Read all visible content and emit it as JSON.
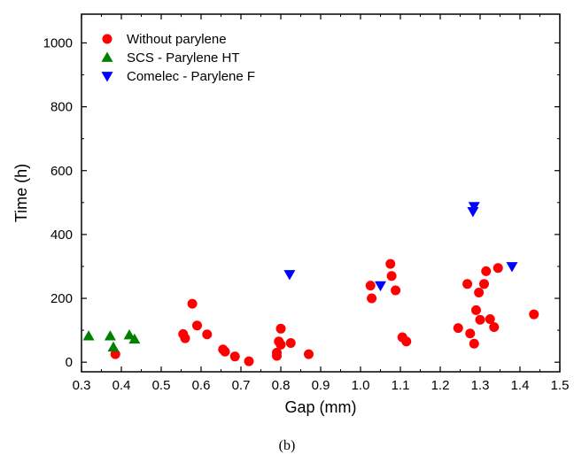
{
  "chart_data": {
    "type": "scatter",
    "xlabel": "Gap (mm)",
    "ylabel": "Time (h)",
    "xlim": [
      0.3,
      1.5
    ],
    "ylim": [
      -30,
      1090
    ],
    "x_ticks": [
      0.3,
      0.4,
      0.5,
      0.6,
      0.7,
      0.8,
      0.9,
      1.0,
      1.1,
      1.2,
      1.3,
      1.4,
      1.5
    ],
    "x_tick_labels": [
      "0.3",
      "0.4",
      "0.5",
      "0.6",
      "0.7",
      "0.8",
      "0.9",
      "1.0",
      "1.1",
      "1.2",
      "1.3",
      "1.4",
      "1.5"
    ],
    "y_ticks": [
      0,
      200,
      400,
      600,
      800,
      1000
    ],
    "y_tick_labels": [
      "0",
      "200",
      "400",
      "600",
      "800",
      "1000"
    ],
    "grid": false,
    "legend_position": "top-left",
    "caption": "(b)",
    "series": [
      {
        "name": "Without parylene",
        "marker": "circle",
        "color": "#ff0000",
        "points": [
          [
            0.385,
            25
          ],
          [
            0.555,
            88
          ],
          [
            0.56,
            75
          ],
          [
            0.578,
            183
          ],
          [
            0.59,
            115
          ],
          [
            0.615,
            87
          ],
          [
            0.655,
            40
          ],
          [
            0.66,
            33
          ],
          [
            0.685,
            18
          ],
          [
            0.72,
            3
          ],
          [
            0.79,
            20
          ],
          [
            0.79,
            30
          ],
          [
            0.795,
            65
          ],
          [
            0.8,
            105
          ],
          [
            0.8,
            55
          ],
          [
            0.825,
            60
          ],
          [
            0.87,
            25
          ],
          [
            1.025,
            240
          ],
          [
            1.028,
            200
          ],
          [
            1.075,
            308
          ],
          [
            1.078,
            270
          ],
          [
            1.088,
            225
          ],
          [
            1.105,
            78
          ],
          [
            1.115,
            65
          ],
          [
            1.245,
            107
          ],
          [
            1.268,
            245
          ],
          [
            1.275,
            90
          ],
          [
            1.285,
            58
          ],
          [
            1.29,
            163
          ],
          [
            1.297,
            218
          ],
          [
            1.3,
            133
          ],
          [
            1.31,
            245
          ],
          [
            1.315,
            285
          ],
          [
            1.325,
            135
          ],
          [
            1.335,
            110
          ],
          [
            1.345,
            295
          ],
          [
            1.435,
            150
          ]
        ]
      },
      {
        "name": "SCS - Parylene HT",
        "marker": "triangle-up",
        "color": "#008000",
        "points": [
          [
            0.318,
            82
          ],
          [
            0.372,
            82
          ],
          [
            0.38,
            47
          ],
          [
            0.42,
            85
          ],
          [
            0.433,
            72
          ]
        ]
      },
      {
        "name": "Comelec - Parylene F",
        "marker": "triangle-down",
        "color": "#0000ff",
        "points": [
          [
            0.822,
            275
          ],
          [
            1.05,
            240
          ],
          [
            1.282,
            472
          ],
          [
            1.285,
            488
          ],
          [
            1.38,
            300
          ]
        ]
      }
    ]
  }
}
